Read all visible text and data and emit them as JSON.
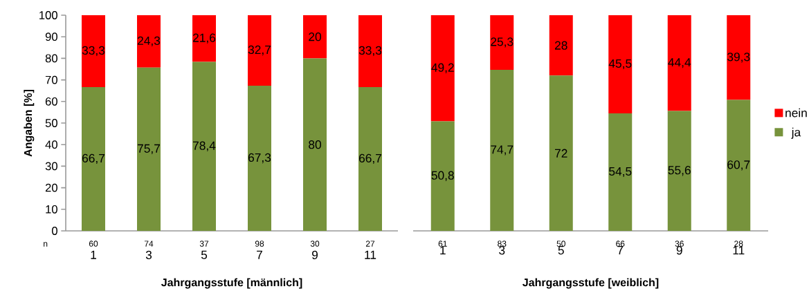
{
  "chart_data": [
    {
      "type": "bar",
      "stacked": true,
      "xlabel": "Jahrgangsstufe [männlich]",
      "ylabel": "Angaben [%]",
      "categories": [
        "1",
        "3",
        "5",
        "7",
        "9",
        "11"
      ],
      "series": [
        {
          "color": "#77933c",
          "values": [
            66.7,
            75.7,
            78.4,
            67.3,
            80,
            66.7
          ],
          "value_labels": [
            "66,7",
            "75,7",
            "78,4",
            "67,3",
            "80",
            "66,7"
          ]
        },
        {
          "color": "#ff0000",
          "values": [
            33.3,
            24.3,
            21.6,
            32.7,
            20,
            33.3
          ],
          "value_labels": [
            "33,3",
            "24,3",
            "21,6",
            "32,7",
            "20",
            "33,3"
          ]
        }
      ],
      "ylim": [
        0,
        100
      ],
      "yticks": [
        0,
        10,
        20,
        30,
        40,
        50,
        60,
        70,
        80,
        90,
        100
      ],
      "legend": false,
      "annotations": [
        "n",
        "60",
        "74",
        "37",
        "98",
        "30",
        "27"
      ]
    },
    {
      "type": "bar",
      "stacked": true,
      "xlabel": "Jahrgangsstufe [weiblich]",
      "categories": [
        "1",
        "3",
        "5",
        "7",
        "9",
        "11"
      ],
      "series": [
        {
          "name": "ja",
          "color": "#77933c",
          "values": [
            50.8,
            74.7,
            72,
            54.5,
            55.6,
            60.7
          ],
          "value_labels": [
            "50,8",
            "74,7",
            "72",
            "54,5",
            "55,6",
            "60,7"
          ]
        },
        {
          "name": "nein",
          "color": "#ff0000",
          "values": [
            49.2,
            25.3,
            28,
            45.5,
            44.4,
            39.3
          ],
          "value_labels": [
            "49,2",
            "25,3",
            "28",
            "45,5",
            "44,4",
            "39,3"
          ]
        }
      ],
      "ylim": [
        0,
        100
      ],
      "yticks": [
        0,
        10,
        20,
        30,
        40,
        50,
        60,
        70,
        80,
        90,
        100
      ],
      "tick_labels": "x",
      "legend": "right",
      "annotations": [
        "61",
        "83",
        "50",
        "66",
        "36",
        "28"
      ]
    }
  ]
}
